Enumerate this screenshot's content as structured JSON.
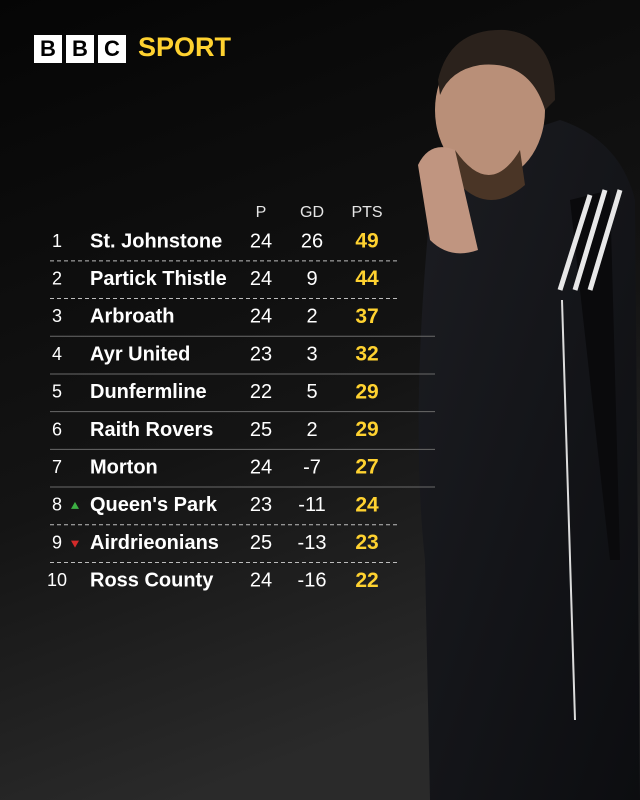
{
  "header": {
    "logo": [
      "B",
      "B",
      "C"
    ],
    "brand": "SPORT"
  },
  "table": {
    "columns": [
      "P",
      "GD",
      "PTS"
    ],
    "rows": [
      {
        "position": 1,
        "team": "St. Johnstone",
        "played": 24,
        "gd": 26,
        "pts": 49
      },
      {
        "position": 2,
        "team": "Partick Thistle",
        "played": 24,
        "gd": 9,
        "pts": 44
      },
      {
        "position": 3,
        "team": "Arbroath",
        "played": 24,
        "gd": 2,
        "pts": 37
      },
      {
        "position": 4,
        "team": "Ayr United",
        "played": 23,
        "gd": 3,
        "pts": 32
      },
      {
        "position": 5,
        "team": "Dunfermline",
        "played": 22,
        "gd": 5,
        "pts": 29
      },
      {
        "position": 6,
        "team": "Raith Rovers",
        "played": 25,
        "gd": 2,
        "pts": 29
      },
      {
        "position": 7,
        "team": "Morton",
        "played": 24,
        "gd": -7,
        "pts": 27
      },
      {
        "position": 8,
        "team": "Queen's Park",
        "played": 23,
        "gd": -11,
        "pts": 24,
        "movement": "up"
      },
      {
        "position": 9,
        "team": "Airdrieonians",
        "played": 25,
        "gd": -13,
        "pts": 23,
        "movement": "down"
      },
      {
        "position": 10,
        "team": "Ross County",
        "played": 24,
        "gd": -16,
        "pts": 22
      }
    ]
  }
}
